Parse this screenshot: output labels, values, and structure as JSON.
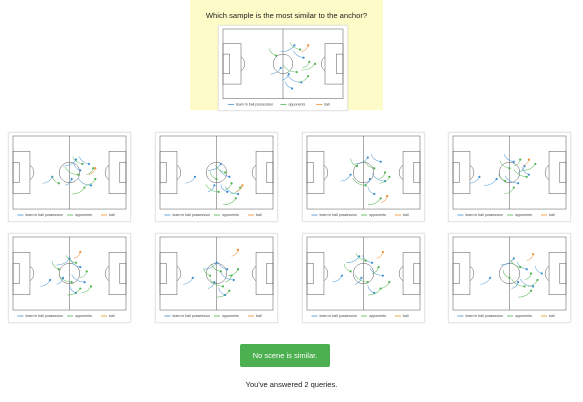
{
  "question": "Which sample is the most similar to the anchor?",
  "legend": {
    "team": "team in ball possession",
    "opponents": "opponents",
    "ball": "ball"
  },
  "colors": {
    "team": "#3d8fd1",
    "opponents": "#4db34d",
    "ball": "#f08a2a",
    "pitch_line": "#555555",
    "anchor_bg": "#fdfcc8",
    "button_bg": "#4caf50"
  },
  "button": {
    "label": "No scene is similar."
  },
  "status": "You've answered 2 queries.",
  "scenes": [
    {
      "id": "anchor",
      "team": [
        [
          10,
          -18
        ],
        [
          18,
          -6
        ],
        [
          5,
          10
        ],
        [
          16,
          18
        ],
        [
          -2,
          4
        ],
        [
          8,
          24
        ]
      ],
      "opp": [
        [
          15,
          -14
        ],
        [
          23,
          -2
        ],
        [
          12,
          8
        ],
        [
          22,
          12
        ],
        [
          -6,
          -8
        ],
        [
          28,
          0
        ]
      ],
      "ball": [
        22,
        -18
      ]
    },
    {
      "id": "s1",
      "team": [
        [
          6,
          -12
        ],
        [
          18,
          -8
        ],
        [
          2,
          6
        ],
        [
          20,
          12
        ],
        [
          -16,
          4
        ],
        [
          10,
          -2
        ]
      ],
      "opp": [
        [
          12,
          -8
        ],
        [
          22,
          -4
        ],
        [
          8,
          2
        ],
        [
          24,
          6
        ],
        [
          -10,
          10
        ],
        [
          14,
          14
        ]
      ],
      "ball": [
        24,
        -4
      ]
    },
    {
      "id": "s2",
      "team": [
        [
          4,
          -8
        ],
        [
          12,
          4
        ],
        [
          -2,
          12
        ],
        [
          20,
          20
        ],
        [
          -20,
          4
        ],
        [
          10,
          18
        ]
      ],
      "opp": [
        [
          8,
          0
        ],
        [
          14,
          10
        ],
        [
          2,
          18
        ],
        [
          22,
          14
        ],
        [
          0,
          6
        ],
        [
          18,
          24
        ]
      ],
      "ball": [
        24,
        12
      ]
    },
    {
      "id": "s3",
      "team": [
        [
          4,
          -14
        ],
        [
          16,
          -10
        ],
        [
          6,
          6
        ],
        [
          20,
          8
        ],
        [
          -12,
          2
        ],
        [
          10,
          20
        ]
      ],
      "opp": [
        [
          10,
          -4
        ],
        [
          20,
          0
        ],
        [
          2,
          12
        ],
        [
          24,
          4
        ],
        [
          -6,
          -6
        ],
        [
          16,
          24
        ]
      ],
      "ball": [
        22,
        22
      ]
    },
    {
      "id": "s4",
      "team": [
        [
          -12,
          6
        ],
        [
          4,
          -10
        ],
        [
          14,
          -6
        ],
        [
          8,
          10
        ],
        [
          -28,
          4
        ],
        [
          18,
          2
        ]
      ],
      "opp": [
        [
          0,
          -4
        ],
        [
          10,
          -12
        ],
        [
          16,
          4
        ],
        [
          4,
          14
        ],
        [
          -4,
          8
        ],
        [
          24,
          -8
        ]
      ],
      "ball": [
        18,
        -12
      ]
    },
    {
      "id": "s5",
      "team": [
        [
          0,
          -14
        ],
        [
          10,
          -6
        ],
        [
          -6,
          4
        ],
        [
          14,
          8
        ],
        [
          -18,
          6
        ],
        [
          6,
          18
        ]
      ],
      "opp": [
        [
          6,
          -10
        ],
        [
          16,
          -2
        ],
        [
          2,
          8
        ],
        [
          20,
          12
        ],
        [
          -10,
          -4
        ],
        [
          10,
          14
        ]
      ],
      "ball": [
        10,
        -20
      ]
    },
    {
      "id": "s6",
      "team": [
        [
          0,
          -10
        ],
        [
          10,
          -4
        ],
        [
          -2,
          8
        ],
        [
          16,
          6
        ],
        [
          -22,
          4
        ],
        [
          8,
          20
        ]
      ],
      "opp": [
        [
          4,
          -2
        ],
        [
          14,
          2
        ],
        [
          6,
          12
        ],
        [
          20,
          -4
        ],
        [
          -6,
          2
        ],
        [
          12,
          16
        ]
      ],
      "ball": [
        20,
        -22
      ]
    },
    {
      "id": "s7",
      "team": [
        [
          -4,
          -16
        ],
        [
          8,
          -10
        ],
        [
          -2,
          4
        ],
        [
          18,
          2
        ],
        [
          -20,
          2
        ],
        [
          10,
          18
        ]
      ],
      "opp": [
        [
          2,
          -12
        ],
        [
          14,
          -6
        ],
        [
          4,
          8
        ],
        [
          24,
          8
        ],
        [
          -12,
          -2
        ],
        [
          16,
          14
        ]
      ],
      "ball": [
        18,
        -20
      ]
    },
    {
      "id": "s8",
      "team": [
        [
          4,
          -14
        ],
        [
          16,
          -4
        ],
        [
          8,
          8
        ],
        [
          22,
          12
        ],
        [
          -18,
          4
        ],
        [
          30,
          0
        ]
      ],
      "opp": [
        [
          10,
          -6
        ],
        [
          20,
          0
        ],
        [
          14,
          12
        ],
        [
          26,
          6
        ],
        [
          0,
          4
        ],
        [
          20,
          16
        ]
      ],
      "ball": [
        22,
        -18
      ]
    }
  ]
}
